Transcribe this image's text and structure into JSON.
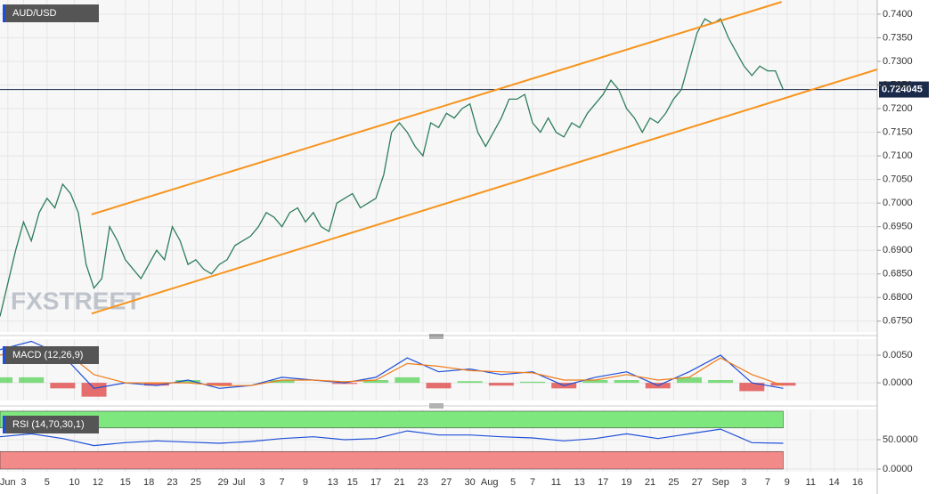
{
  "chart_data": [
    {
      "type": "line",
      "title": "AUD/USD",
      "watermark": "FXSTREET",
      "x": [
        0,
        1,
        2,
        3,
        4,
        5,
        6,
        7,
        8,
        9,
        10,
        11,
        12,
        13,
        14,
        15,
        16,
        17,
        18,
        19,
        20,
        21,
        22,
        23,
        24,
        25,
        26,
        27,
        28,
        29,
        30,
        31,
        32,
        33,
        34,
        35,
        36,
        37,
        38,
        39,
        40,
        41,
        42,
        43,
        44,
        45,
        46,
        47,
        48,
        49,
        50,
        51,
        52,
        53,
        54,
        55,
        56,
        57,
        58,
        59,
        60,
        61,
        62,
        63,
        64,
        65,
        66,
        67,
        68,
        69,
        70,
        71,
        72,
        73,
        74,
        75,
        76,
        77,
        78,
        79,
        80,
        81,
        82,
        83,
        84,
        85,
        86,
        87,
        88,
        89,
        90,
        91,
        92,
        93,
        94,
        95,
        96,
        97,
        98,
        99,
        100
      ],
      "series": [
        {
          "color": "#2e7d5b",
          "values": [
            0.676,
            0.683,
            0.69,
            0.696,
            0.692,
            0.698,
            0.701,
            0.699,
            0.704,
            0.702,
            0.698,
            0.687,
            0.682,
            0.684,
            0.695,
            0.692,
            0.688,
            0.686,
            0.684,
            0.687,
            0.69,
            0.688,
            0.695,
            0.692,
            0.687,
            0.688,
            0.686,
            0.685,
            0.687,
            0.688,
            0.691,
            0.692,
            0.693,
            0.695,
            0.698,
            0.697,
            0.695,
            0.698,
            0.699,
            0.696,
            0.698,
            0.695,
            0.694,
            0.7,
            0.701,
            0.702,
            0.699,
            0.7,
            0.701,
            0.706,
            0.715,
            0.717,
            0.715,
            0.712,
            0.71,
            0.717,
            0.716,
            0.719,
            0.718,
            0.72,
            0.721,
            0.715,
            0.712,
            0.715,
            0.718,
            0.722,
            0.722,
            0.723,
            0.717,
            0.715,
            0.718,
            0.715,
            0.714,
            0.717,
            0.716,
            0.719,
            0.721,
            0.723,
            0.726,
            0.724,
            0.72,
            0.718,
            0.715,
            0.718,
            0.717,
            0.719,
            0.722,
            0.724,
            0.73,
            0.736,
            0.739,
            0.738,
            0.739,
            0.735,
            0.732,
            0.729,
            0.727,
            0.729,
            0.728,
            0.728,
            0.724
          ]
        }
      ],
      "trendlines": [
        {
          "color": "#f7941d",
          "x": [
            11.7,
            99.8
          ],
          "values": [
            0.6976,
            0.7426
          ]
        },
        {
          "color": "#f7941d",
          "x": [
            11.7,
            112
          ],
          "values": [
            0.6766,
            0.7283
          ]
        }
      ],
      "last_price": 0.724045,
      "xlim": [
        0,
        112
      ],
      "xticks": [
        {
          "value": 1,
          "label": "Jun"
        },
        {
          "value": 3,
          "label": "3"
        },
        {
          "value": 6,
          "label": "5"
        },
        {
          "value": 9.5,
          "label": "10"
        },
        {
          "value": 12.5,
          "label": "12"
        },
        {
          "value": 16,
          "label": "15"
        },
        {
          "value": 19,
          "label": "18"
        },
        {
          "value": 22,
          "label": "23"
        },
        {
          "value": 25,
          "label": "25"
        },
        {
          "value": 28.5,
          "label": "29"
        },
        {
          "value": 30.5,
          "label": "Jul"
        },
        {
          "value": 33.5,
          "label": "3"
        },
        {
          "value": 36,
          "label": "7"
        },
        {
          "value": 39,
          "label": "9"
        },
        {
          "value": 42.5,
          "label": "13"
        },
        {
          "value": 45,
          "label": "15"
        },
        {
          "value": 48,
          "label": "17"
        },
        {
          "value": 51,
          "label": "21"
        },
        {
          "value": 54,
          "label": "23"
        },
        {
          "value": 57,
          "label": "27"
        },
        {
          "value": 60,
          "label": "30"
        },
        {
          "value": 62.5,
          "label": "Aug"
        },
        {
          "value": 65.5,
          "label": "5"
        },
        {
          "value": 68,
          "label": "7"
        },
        {
          "value": 71,
          "label": "11"
        },
        {
          "value": 74,
          "label": "13"
        },
        {
          "value": 77,
          "label": "17"
        },
        {
          "value": 80,
          "label": "19"
        },
        {
          "value": 83,
          "label": "21"
        },
        {
          "value": 86,
          "label": "25"
        },
        {
          "value": 89,
          "label": "27"
        },
        {
          "value": 92,
          "label": "Sep"
        },
        {
          "value": 95,
          "label": "3"
        },
        {
          "value": 98,
          "label": "7"
        },
        {
          "value": 100.5,
          "label": "9"
        },
        {
          "value": 103.5,
          "label": "11"
        },
        {
          "value": 106.5,
          "label": "14"
        },
        {
          "value": 109.5,
          "label": "16"
        }
      ],
      "ylim": [
        0.6727,
        0.743
      ],
      "yticks": [
        {
          "value": 0.74,
          "label": "0.7400"
        },
        {
          "value": 0.735,
          "label": "0.7350"
        },
        {
          "value": 0.73,
          "label": "0.7300"
        },
        {
          "value": 0.725,
          "label": "0.7250"
        },
        {
          "value": 0.72,
          "label": "0.7200"
        },
        {
          "value": 0.715,
          "label": "0.7150"
        },
        {
          "value": 0.71,
          "label": "0.7100"
        },
        {
          "value": 0.705,
          "label": "0.7050"
        },
        {
          "value": 0.7,
          "label": "0.7000"
        },
        {
          "value": 0.695,
          "label": "0.6950"
        },
        {
          "value": 0.69,
          "label": "0.6900"
        },
        {
          "value": 0.685,
          "label": "0.6850"
        },
        {
          "value": 0.68,
          "label": "0.6800"
        },
        {
          "value": 0.675,
          "label": "0.6750"
        }
      ],
      "grid": true
    },
    {
      "type": "macd",
      "title": "MACD (12,26,9)",
      "x": [
        0,
        4,
        8,
        12,
        16,
        20,
        24,
        28,
        32,
        36,
        40,
        44,
        48,
        52,
        56,
        60,
        64,
        68,
        72,
        76,
        80,
        84,
        88,
        92,
        96,
        100
      ],
      "series": [
        {
          "color": "#1f4fd8",
          "values": [
            0.006,
            0.0075,
            0.005,
            -0.001,
            0.0,
            -0.0005,
            0.0005,
            -0.001,
            -0.0005,
            0.001,
            0.0005,
            0.0,
            0.001,
            0.0045,
            0.002,
            0.0025,
            0.0015,
            0.002,
            -0.0005,
            0.001,
            0.002,
            -0.0005,
            0.002,
            0.005,
            0.0,
            -0.001
          ]
        },
        {
          "color": "#f07c1a",
          "values": [
            0.005,
            0.0065,
            0.006,
            0.0015,
            0.0,
            0.0,
            0.0,
            -0.0005,
            -0.0005,
            0.0005,
            0.0005,
            0.0002,
            0.0005,
            0.0035,
            0.003,
            0.0022,
            0.002,
            0.0018,
            0.0005,
            0.0005,
            0.0015,
            0.0005,
            0.001,
            0.0045,
            0.0015,
            -0.0005
          ]
        }
      ],
      "histogram": {
        "positive_color": "#5fd35f",
        "negative_color": "#e04a4a",
        "values": [
          0.001,
          0.001,
          -0.001,
          -0.0025,
          0.0,
          -0.0005,
          0.0005,
          -0.0005,
          0.0,
          0.0005,
          0.0,
          -0.0002,
          0.0005,
          0.001,
          -0.001,
          0.0003,
          -0.0005,
          0.0002,
          -0.001,
          0.0005,
          0.0005,
          -0.001,
          0.001,
          0.0005,
          -0.0015,
          -0.0005
        ]
      },
      "xlim": [
        0,
        112
      ],
      "ylim": [
        -0.0032,
        0.0079
      ],
      "yticks": [
        {
          "value": 0.005,
          "label": "0.0050"
        },
        {
          "value": 0,
          "label": "0.0000"
        }
      ],
      "grid": true
    },
    {
      "type": "rsi",
      "title": "RSI (14,70,30,1)",
      "x": [
        0,
        4,
        8,
        12,
        16,
        20,
        24,
        28,
        32,
        36,
        40,
        44,
        48,
        52,
        56,
        60,
        64,
        68,
        72,
        76,
        80,
        84,
        88,
        92,
        96,
        100
      ],
      "series": [
        {
          "color": "#1f4fd8",
          "values": [
            55,
            60,
            52,
            40,
            45,
            48,
            46,
            44,
            47,
            52,
            55,
            50,
            52,
            65,
            58,
            58,
            55,
            53,
            48,
            52,
            60,
            52,
            60,
            68,
            45,
            44
          ]
        }
      ],
      "levels": [
        {
          "value": 70,
          "color": "#7ee87e"
        },
        {
          "value": 30,
          "color": "#f28a8a"
        }
      ],
      "xlim": [
        0,
        112
      ],
      "ylim": [
        -4.5,
        101.5
      ],
      "yticks": [
        {
          "value": 50,
          "label": "50.0000"
        },
        {
          "value": 0,
          "label": "0.0000"
        }
      ],
      "grid": true
    }
  ]
}
